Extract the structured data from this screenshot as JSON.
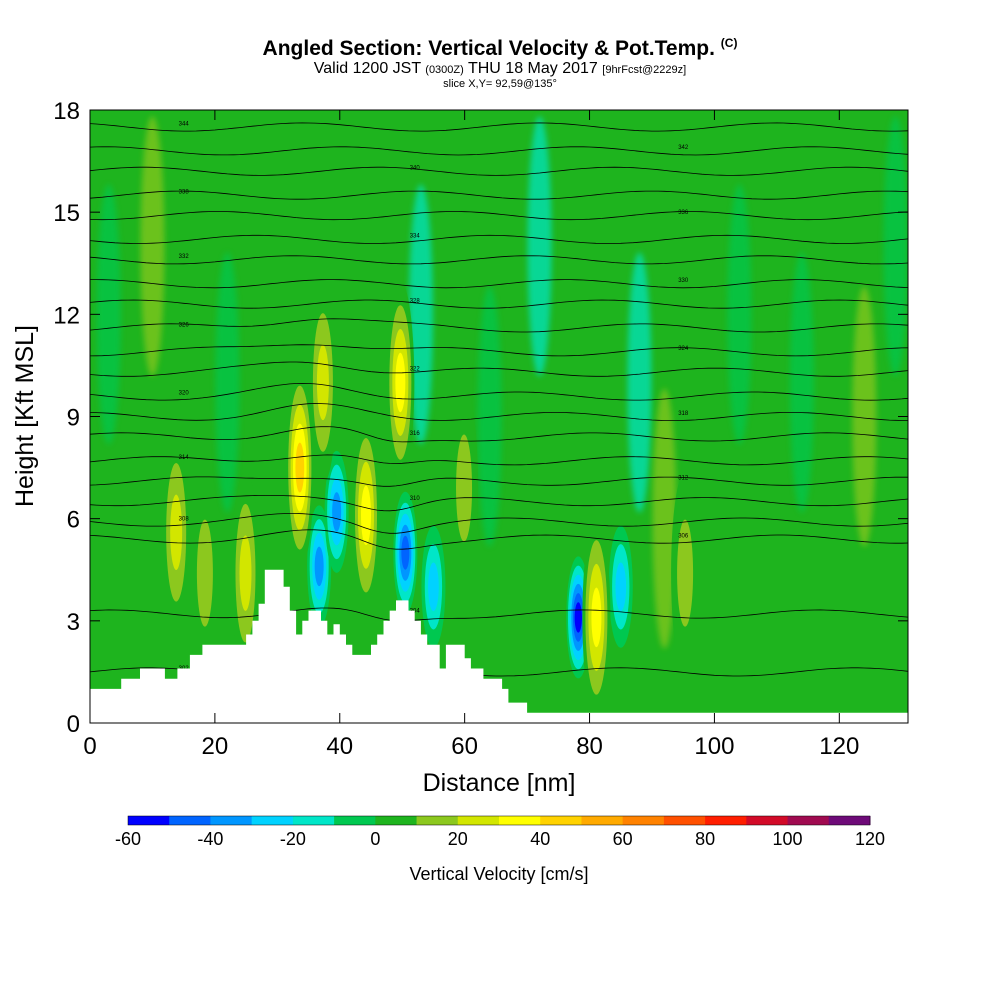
{
  "header": {
    "title": "Angled Section: Vertical Velocity & Pot.Temp.",
    "copyright": "(C)",
    "valid_prefix": "Valid 1200 JST",
    "valid_utc": "(0300Z)",
    "valid_date": "THU 18 May 2017",
    "forecast": "[9hrFcst@2229z]",
    "slice": "slice X,Y= 92,59@135°"
  },
  "chart_data": {
    "type": "heatmap",
    "xlabel": "Distance [nm]",
    "ylabel": "Height [Kft MSL]",
    "xlim": [
      0,
      131
    ],
    "ylim": [
      0,
      18
    ],
    "xticks": [
      0,
      20,
      40,
      60,
      80,
      100,
      120
    ],
    "yticks": [
      0,
      3,
      6,
      9,
      12,
      15,
      18
    ],
    "colorbar": {
      "label": "Vertical Velocity [cm/s]",
      "ticks": [
        -60,
        -40,
        -20,
        0,
        20,
        40,
        60,
        80,
        100,
        120
      ],
      "range": [
        -60,
        120
      ],
      "step": 10,
      "colors": [
        "#0000ff",
        "#0064ff",
        "#0096ff",
        "#00d2ff",
        "#00e6c8",
        "#00c850",
        "#1eb41e",
        "#8cc81e",
        "#d2e600",
        "#ffff00",
        "#ffd200",
        "#ffaa00",
        "#ff8200",
        "#ff5000",
        "#ff1e00",
        "#d20a28",
        "#a00a50",
        "#6e0a78"
      ]
    },
    "terrain": [
      [
        0,
        1
      ],
      [
        5,
        1
      ],
      [
        5,
        1.3
      ],
      [
        8,
        1.3
      ],
      [
        8,
        1.6
      ],
      [
        12,
        1.6
      ],
      [
        12,
        1.3
      ],
      [
        14,
        1.3
      ],
      [
        14,
        1.6
      ],
      [
        16,
        1.6
      ],
      [
        16,
        2
      ],
      [
        18,
        2
      ],
      [
        18,
        2.3
      ],
      [
        25,
        2.3
      ],
      [
        25,
        2.6
      ],
      [
        26,
        2.6
      ],
      [
        26,
        3
      ],
      [
        27,
        3
      ],
      [
        27,
        3.5
      ],
      [
        28,
        3.5
      ],
      [
        28,
        4.5
      ],
      [
        31,
        4.5
      ],
      [
        31,
        4
      ],
      [
        32,
        4
      ],
      [
        32,
        3.3
      ],
      [
        33,
        3.3
      ],
      [
        33,
        2.6
      ],
      [
        34,
        2.6
      ],
      [
        34,
        3
      ],
      [
        35,
        3
      ],
      [
        35,
        3.3
      ],
      [
        37,
        3.3
      ],
      [
        37,
        3
      ],
      [
        38,
        3
      ],
      [
        38,
        2.6
      ],
      [
        39,
        2.6
      ],
      [
        39,
        2.9
      ],
      [
        40,
        2.9
      ],
      [
        40,
        2.6
      ],
      [
        41,
        2.6
      ],
      [
        41,
        2.3
      ],
      [
        42,
        2.3
      ],
      [
        42,
        2
      ],
      [
        45,
        2
      ],
      [
        45,
        2.3
      ],
      [
        46,
        2.3
      ],
      [
        46,
        2.6
      ],
      [
        47,
        2.6
      ],
      [
        47,
        3
      ],
      [
        48,
        3
      ],
      [
        48,
        3.3
      ],
      [
        49,
        3.3
      ],
      [
        49,
        3.6
      ],
      [
        51,
        3.6
      ],
      [
        51,
        3.3
      ],
      [
        52,
        3.3
      ],
      [
        52,
        3
      ],
      [
        53,
        3
      ],
      [
        53,
        2.6
      ],
      [
        54,
        2.6
      ],
      [
        54,
        2.3
      ],
      [
        56,
        2.3
      ],
      [
        56,
        1.6
      ],
      [
        57,
        1.6
      ],
      [
        57,
        2.3
      ],
      [
        60,
        2.3
      ],
      [
        60,
        1.9
      ],
      [
        61,
        1.9
      ],
      [
        61,
        1.6
      ],
      [
        63,
        1.6
      ],
      [
        63,
        1.3
      ],
      [
        66,
        1.3
      ],
      [
        66,
        1
      ],
      [
        67,
        1
      ],
      [
        67,
        0.6
      ],
      [
        70,
        0.6
      ],
      [
        70,
        0.3
      ],
      [
        131,
        0.3
      ],
      [
        131,
        0
      ]
    ],
    "updraft_cores": [
      {
        "x": 33.6,
        "y": 7.5,
        "w": 40
      },
      {
        "x": 44.2,
        "y": 6.1,
        "w": 35
      },
      {
        "x": 49.7,
        "y": 10.0,
        "w": 30
      },
      {
        "x": 37.3,
        "y": 10.0,
        "w": 25
      },
      {
        "x": 13.8,
        "y": 5.6,
        "w": 25
      },
      {
        "x": 24.9,
        "y": 4.4,
        "w": 25
      },
      {
        "x": 18.4,
        "y": 4.4,
        "w": 15
      },
      {
        "x": 81.1,
        "y": 3.1,
        "w": 35
      },
      {
        "x": 59.9,
        "y": 6.9,
        "w": 15
      },
      {
        "x": 95.3,
        "y": 4.4,
        "w": 15
      }
    ],
    "downdraft_cores": [
      {
        "x": 36.7,
        "y": 4.6,
        "w": -30
      },
      {
        "x": 39.5,
        "y": 6.2,
        "w": -30
      },
      {
        "x": 78.2,
        "y": 3.1,
        "w": -50
      },
      {
        "x": 50.5,
        "y": 5.0,
        "w": -40
      },
      {
        "x": 55.0,
        "y": 4.0,
        "w": -25
      },
      {
        "x": 85.0,
        "y": 4.0,
        "w": -20
      }
    ],
    "theta_isentropes": [
      {
        "y0": 1.5,
        "label": "302"
      },
      {
        "y0": 3.2,
        "label": "304"
      },
      {
        "y0": 5.4,
        "label": "306"
      },
      {
        "y0": 5.9,
        "label": "308"
      },
      {
        "y0": 6.5,
        "label": "310"
      },
      {
        "y0": 7.1,
        "label": "312"
      },
      {
        "y0": 7.7,
        "label": "314"
      },
      {
        "y0": 8.4,
        "label": "316"
      },
      {
        "y0": 9.0,
        "label": "318"
      },
      {
        "y0": 9.6,
        "label": "320"
      },
      {
        "y0": 10.3,
        "label": "322"
      },
      {
        "y0": 10.9,
        "label": "324"
      },
      {
        "y0": 11.6,
        "label": "326"
      },
      {
        "y0": 12.3,
        "label": "328"
      },
      {
        "y0": 12.9,
        "label": "330"
      },
      {
        "y0": 13.6,
        "label": "332"
      },
      {
        "y0": 14.2,
        "label": "334"
      },
      {
        "y0": 14.9,
        "label": "336"
      },
      {
        "y0": 15.5,
        "label": "338"
      },
      {
        "y0": 16.2,
        "label": "340"
      },
      {
        "y0": 16.8,
        "label": "342"
      },
      {
        "y0": 17.5,
        "label": "344"
      }
    ]
  }
}
